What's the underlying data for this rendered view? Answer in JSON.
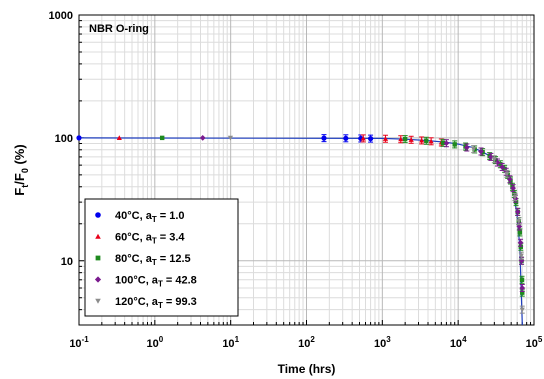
{
  "chart_data": {
    "type": "scatter",
    "annotation": "NBR O-ring",
    "xlabel": "Time (hrs)",
    "ylabel": {
      "main": "F",
      "sub_t": "t",
      "slash": "/F",
      "sub_0": "0",
      "unit": " (%)"
    },
    "x_scale": "log",
    "y_scale": "log",
    "xlim": [
      0.1,
      100000
    ],
    "ylim": [
      3,
      1000
    ],
    "x_ticks": [
      {
        "value": 0.1,
        "base": "10",
        "exp": "-1"
      },
      {
        "value": 1,
        "base": "10",
        "exp": "0"
      },
      {
        "value": 10,
        "base": "10",
        "exp": "1"
      },
      {
        "value": 100,
        "base": "10",
        "exp": "2"
      },
      {
        "value": 1000,
        "base": "10",
        "exp": "3"
      },
      {
        "value": 10000,
        "base": "10",
        "exp": "4"
      },
      {
        "value": 100000,
        "base": "10",
        "exp": "5"
      }
    ],
    "y_ticks": [
      {
        "value": 10,
        "label": "10"
      },
      {
        "value": 100,
        "label": "100"
      },
      {
        "value": 1000,
        "label": "1000"
      }
    ],
    "grid": true,
    "legend_position": "bottom-left",
    "fit_line": {
      "color": "#1f3fbf",
      "x": [
        0.1,
        1000,
        2000,
        4000,
        7000,
        10000,
        15000,
        20000,
        30000,
        40000,
        50000,
        55000,
        60000,
        65000,
        70000
      ],
      "y": [
        100,
        99,
        97.5,
        95,
        92,
        89,
        84,
        78,
        68,
        56,
        42,
        33,
        23,
        13,
        3
      ]
    },
    "series": [
      {
        "name": "40°C, a",
        "name_sub": "T",
        "name_rest": " = 1.0",
        "marker": "circle",
        "color": "#0000ee",
        "x": [
          0.1,
          170,
          330,
          520,
          700
        ],
        "y": [
          100,
          99.5,
          99.2,
          98.9,
          98.6
        ]
      },
      {
        "name": "60°C, a",
        "name_sub": "T",
        "name_rest": " = 3.4",
        "marker": "triangle",
        "color": "#e8001a",
        "x": [
          0.34,
          560,
          1100,
          1750,
          2400,
          3300,
          4400,
          6000
        ],
        "y": [
          100,
          99,
          98.4,
          97.5,
          96.5,
          95.3,
          93.8,
          91.8
        ]
      },
      {
        "name": "80°C, a",
        "name_sub": "T",
        "name_rest": " = 12.5",
        "marker": "square",
        "color": "#1e8a1e",
        "x": [
          1.25,
          2000,
          3800,
          6300,
          9000,
          12500,
          16500,
          21000,
          26000,
          31000,
          36000,
          41000,
          45000,
          49000,
          52000,
          55000,
          58000,
          61000,
          63000,
          65000,
          67000,
          68500,
          69500,
          70000
        ],
        "y": [
          100,
          97.7,
          94.7,
          91.1,
          88.5,
          85,
          80.5,
          76.5,
          71,
          66,
          61,
          56,
          50,
          45,
          40,
          35,
          30,
          25,
          21,
          17,
          13,
          10,
          7,
          5.5
        ]
      },
      {
        "name": "100°C, a",
        "name_sub": "T",
        "name_rest": " = 42.8",
        "marker": "diamond",
        "color": "#7a1a8e",
        "x": [
          4.28,
          7000,
          13000,
          20000,
          27000,
          33000,
          38000,
          43000,
          48000,
          53000,
          57000,
          61000,
          64000,
          66500,
          68500,
          70000
        ],
        "y": [
          100,
          90.5,
          83.5,
          77.5,
          70,
          63,
          58,
          53,
          46,
          39,
          32,
          25,
          19,
          14,
          10,
          6
        ]
      },
      {
        "name": "120°C, a",
        "name_sub": "T",
        "name_rest": " = 99.3",
        "marker": "triangle-down",
        "color": "#8c8c8c",
        "x": [
          9.93,
          16000,
          30000,
          44000,
          56000,
          63000,
          68000,
          70000
        ],
        "y": [
          100,
          81,
          67,
          51,
          33,
          21,
          11,
          4
        ]
      }
    ]
  }
}
